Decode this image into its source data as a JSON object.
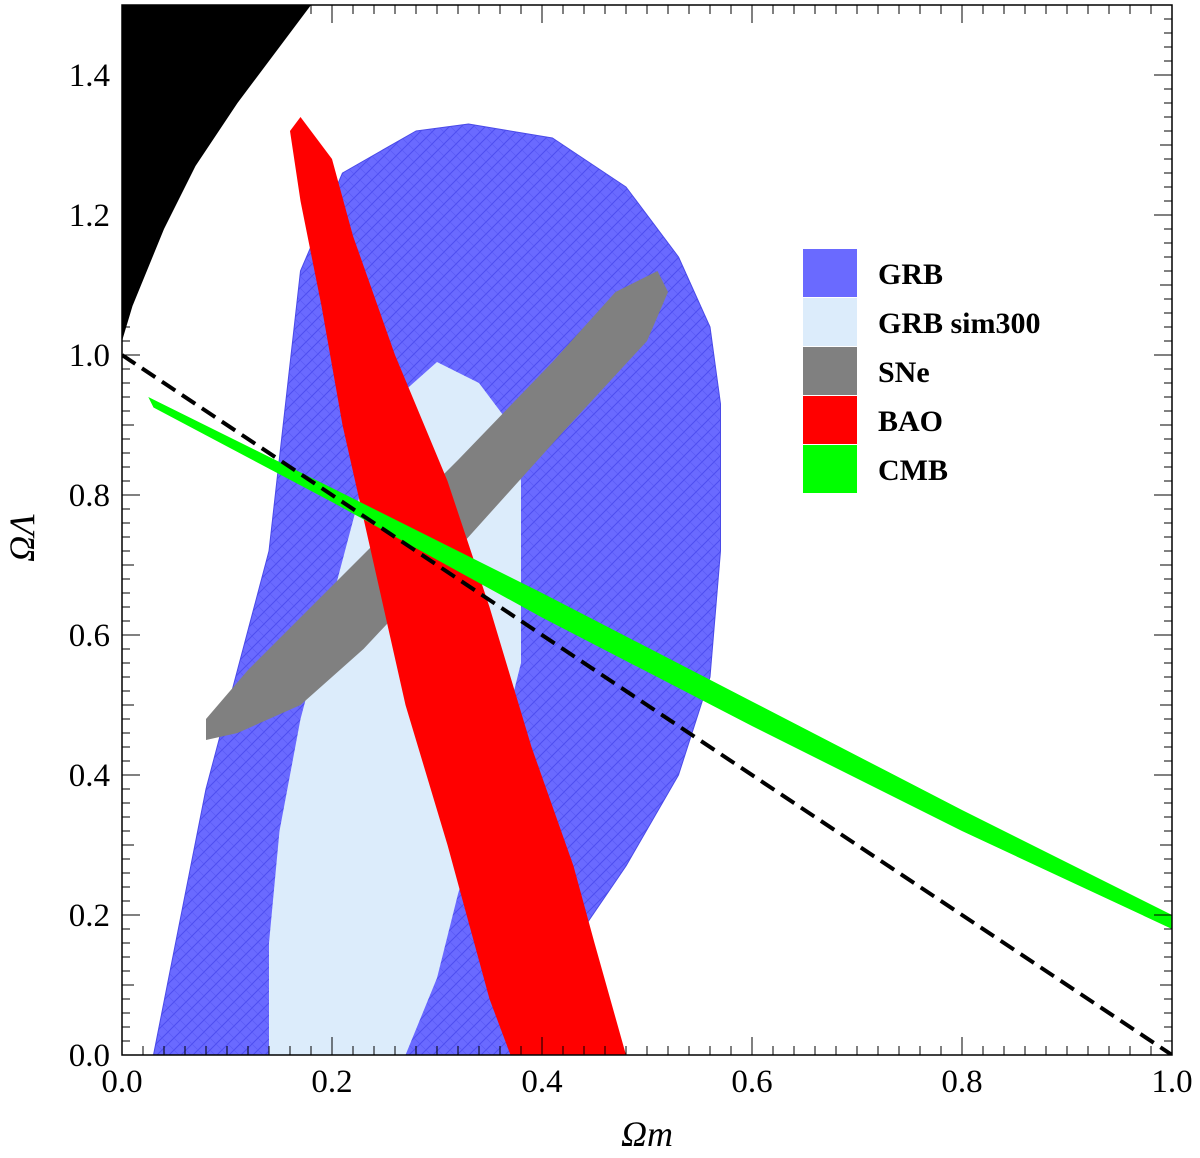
{
  "chart_data": {
    "type": "contour",
    "title": "",
    "xlabel": "Ωm",
    "ylabel": "ΩΛ",
    "xlim": [
      0.0,
      1.0
    ],
    "ylim": [
      0.0,
      1.5
    ],
    "xticks": [
      0.0,
      0.2,
      0.4,
      0.6,
      0.8,
      1.0
    ],
    "xtick_labels": [
      "0.0",
      "0.2",
      "0.4",
      "0.6",
      "0.8",
      "1.0"
    ],
    "yticks": [
      0.0,
      0.2,
      0.4,
      0.6,
      0.8,
      1.0,
      1.2,
      1.4
    ],
    "ytick_labels": [
      "0.0",
      "0.2",
      "0.4",
      "0.6",
      "0.8",
      "1.0",
      "1.2",
      "1.4"
    ],
    "grid": false,
    "legend_position": "right",
    "regions": [
      {
        "name": "GRB",
        "color": "#6a6aff",
        "hatched": true,
        "points": [
          [
            0.03,
            0.0
          ],
          [
            0.08,
            0.38
          ],
          [
            0.14,
            0.72
          ],
          [
            0.17,
            1.12
          ],
          [
            0.21,
            1.26
          ],
          [
            0.28,
            1.32
          ],
          [
            0.33,
            1.33
          ],
          [
            0.41,
            1.31
          ],
          [
            0.48,
            1.24
          ],
          [
            0.53,
            1.14
          ],
          [
            0.56,
            1.04
          ],
          [
            0.57,
            0.93
          ],
          [
            0.57,
            0.72
          ],
          [
            0.56,
            0.54
          ],
          [
            0.53,
            0.4
          ],
          [
            0.48,
            0.27
          ],
          [
            0.43,
            0.16
          ],
          [
            0.37,
            0.0
          ]
        ]
      },
      {
        "name": "GRB sim300",
        "color": "#dcecfb",
        "points": [
          [
            0.14,
            0.0
          ],
          [
            0.14,
            0.16
          ],
          [
            0.15,
            0.32
          ],
          [
            0.17,
            0.48
          ],
          [
            0.2,
            0.65
          ],
          [
            0.23,
            0.82
          ],
          [
            0.27,
            0.95
          ],
          [
            0.3,
            0.99
          ],
          [
            0.34,
            0.96
          ],
          [
            0.37,
            0.9
          ],
          [
            0.38,
            0.82
          ],
          [
            0.38,
            0.56
          ],
          [
            0.35,
            0.38
          ],
          [
            0.32,
            0.23
          ],
          [
            0.3,
            0.11
          ],
          [
            0.27,
            0.0
          ]
        ]
      },
      {
        "name": "SNe",
        "color": "#808080",
        "points": [
          [
            0.08,
            0.45
          ],
          [
            0.08,
            0.48
          ],
          [
            0.12,
            0.55
          ],
          [
            0.22,
            0.7
          ],
          [
            0.32,
            0.85
          ],
          [
            0.41,
            0.99
          ],
          [
            0.47,
            1.09
          ],
          [
            0.51,
            1.12
          ],
          [
            0.52,
            1.09
          ],
          [
            0.5,
            1.02
          ],
          [
            0.42,
            0.89
          ],
          [
            0.33,
            0.74
          ],
          [
            0.23,
            0.58
          ],
          [
            0.17,
            0.5
          ],
          [
            0.11,
            0.46
          ]
        ]
      },
      {
        "name": "BAO",
        "color": "#ff0000",
        "points": [
          [
            0.16,
            1.32
          ],
          [
            0.17,
            1.34
          ],
          [
            0.2,
            1.28
          ],
          [
            0.22,
            1.17
          ],
          [
            0.26,
            1.0
          ],
          [
            0.31,
            0.82
          ],
          [
            0.35,
            0.64
          ],
          [
            0.39,
            0.44
          ],
          [
            0.43,
            0.27
          ],
          [
            0.45,
            0.16
          ],
          [
            0.48,
            0.0
          ],
          [
            0.37,
            0.0
          ],
          [
            0.35,
            0.08
          ],
          [
            0.31,
            0.3
          ],
          [
            0.27,
            0.5
          ],
          [
            0.24,
            0.7
          ],
          [
            0.21,
            0.9
          ],
          [
            0.19,
            1.07
          ],
          [
            0.17,
            1.22
          ]
        ]
      },
      {
        "name": "CMB",
        "color": "#00ff00",
        "points": [
          [
            0.025,
            0.94
          ],
          [
            0.2,
            0.81
          ],
          [
            0.4,
            0.66
          ],
          [
            0.6,
            0.505
          ],
          [
            0.8,
            0.35
          ],
          [
            1.0,
            0.2
          ],
          [
            1.0,
            0.18
          ],
          [
            0.8,
            0.32
          ],
          [
            0.6,
            0.47
          ],
          [
            0.4,
            0.625
          ],
          [
            0.2,
            0.79
          ],
          [
            0.03,
            0.925
          ]
        ]
      },
      {
        "name": "no-big-bang",
        "color": "#000000",
        "points": [
          [
            0.0,
            1.5
          ],
          [
            0.18,
            1.5
          ],
          [
            0.15,
            1.44
          ],
          [
            0.11,
            1.36
          ],
          [
            0.07,
            1.27
          ],
          [
            0.04,
            1.18
          ],
          [
            0.01,
            1.07
          ],
          [
            0.0,
            1.02
          ]
        ]
      }
    ],
    "lines": [
      {
        "name": "flat-universe",
        "style": "dashed",
        "color": "#000000",
        "x": [
          0.0,
          1.0
        ],
        "y": [
          1.0,
          0.0
        ]
      }
    ],
    "legend": [
      {
        "label": "GRB",
        "color": "#6a6aff"
      },
      {
        "label": "GRB sim300",
        "color": "#dcecfb"
      },
      {
        "label": "SNe",
        "color": "#808080"
      },
      {
        "label": "BAO",
        "color": "#ff0000"
      },
      {
        "label": "CMB",
        "color": "#00ff00"
      }
    ]
  }
}
